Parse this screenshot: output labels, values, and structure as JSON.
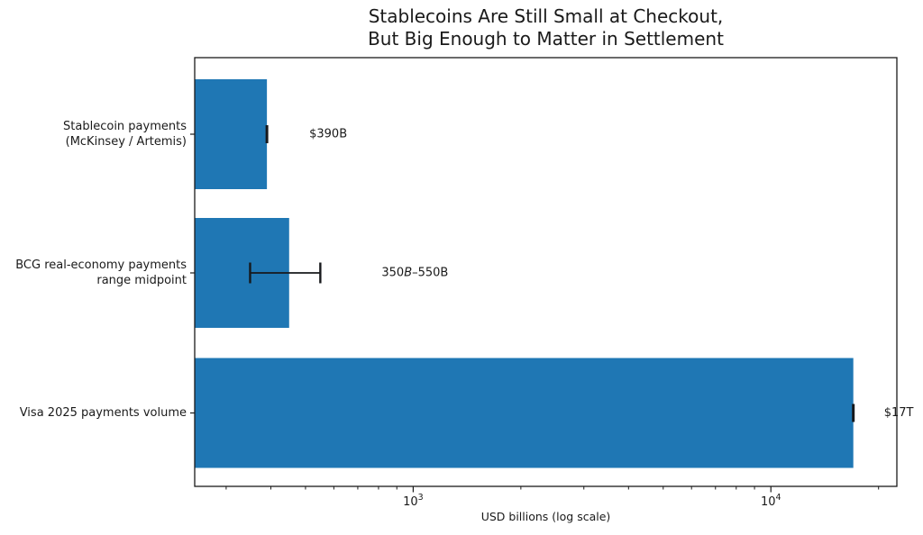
{
  "chart_data": {
    "type": "bar",
    "orientation": "horizontal",
    "title": "Stablecoins Are Still Small at Checkout, But Big Enough to Matter in Settlement",
    "title_lines": [
      "Stablecoins Are Still Small at Checkout,",
      "But Big Enough to Matter in Settlement"
    ],
    "xlabel": "USD billions (log scale)",
    "xscale": "log",
    "xlim": [
      245,
      22500
    ],
    "grid": false,
    "legend": false,
    "categories": [
      "Stablecoin payments (McKinsey / Artemis)",
      "BCG real-economy payments range midpoint",
      "Visa 2025 payments volume"
    ],
    "category_label_lines": [
      [
        "Stablecoin payments",
        "(McKinsey / Artemis)"
      ],
      [
        "BCG real-economy payments",
        "range midpoint"
      ],
      [
        "Visa 2025 payments volume"
      ]
    ],
    "values": [
      390,
      450,
      17000
    ],
    "error_ranges": [
      [
        390,
        390
      ],
      [
        350,
        550
      ],
      [
        17000,
        17000
      ]
    ],
    "annotations": [
      [
        {
          "text": "$390B",
          "italic": false
        }
      ],
      [
        {
          "text": "350",
          "italic": false
        },
        {
          "text": "B",
          "italic": true
        },
        {
          "text": "–550B",
          "italic": false
        }
      ],
      [
        {
          "text": "$17T",
          "italic": false
        }
      ]
    ],
    "x_major_ticks": [
      {
        "value": 1000,
        "base": "10",
        "exp": "3"
      },
      {
        "value": 10000,
        "base": "10",
        "exp": "4"
      }
    ],
    "x_minor_ticks": [
      300,
      400,
      500,
      600,
      700,
      800,
      900,
      2000,
      3000,
      4000,
      5000,
      6000,
      7000,
      8000,
      9000,
      20000
    ],
    "colors": {
      "bar": "#1f77b4",
      "error": "#17191c",
      "axis": "#1a1a1a",
      "text": "#1a1a1a",
      "background": "#ffffff"
    }
  }
}
